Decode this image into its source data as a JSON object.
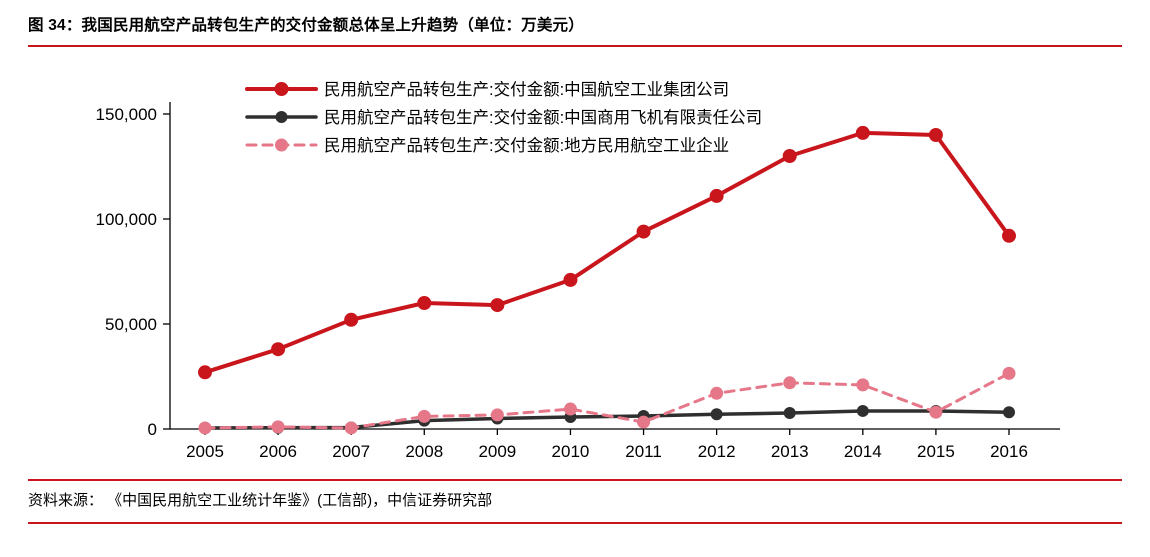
{
  "header": {
    "title": "图 34：我国民用航空产品转包生产的交付金额总体呈上升趋势（单位：万美元）"
  },
  "footer": {
    "source": "资料来源： 《中国民用航空工业统计年鉴》(工信部)，中信证券研究部"
  },
  "colors": {
    "accent_red": "#c9161d",
    "axis": "#000000",
    "series_red": "#c9161d",
    "series_black": "#2f2f2f",
    "series_pink": "#e57789"
  },
  "chart_data": {
    "type": "line",
    "title": "图 34：我国民用航空产品转包生产的交付金额总体呈上升趋势（单位：万美元）",
    "unit": "万美元",
    "xlabel": "",
    "ylabel": "",
    "ylim": [
      0,
      150000
    ],
    "yticks": [
      0,
      50000,
      100000,
      150000
    ],
    "ytick_labels": [
      "0",
      "50,000",
      "100,000",
      "150,000"
    ],
    "grid": false,
    "legend_position": "top-left-inside",
    "categories": [
      "2005",
      "2006",
      "2007",
      "2008",
      "2009",
      "2010",
      "2011",
      "2012",
      "2013",
      "2014",
      "2015",
      "2016"
    ],
    "series": [
      {
        "id": "avic",
        "name": "民用航空产品转包生产:交付金额:中国航空工业集团公司",
        "color": "#c9161d",
        "style": "solid",
        "line_width": 4,
        "marker_radius": 7,
        "values": [
          27000,
          38000,
          52000,
          60000,
          59000,
          71000,
          94000,
          111000,
          130000,
          141000,
          140000,
          92000
        ]
      },
      {
        "id": "comac",
        "name": "民用航空产品转包生产:交付金额:中国商用飞机有限责任公司",
        "color": "#2f2f2f",
        "style": "solid",
        "line_width": 3.5,
        "marker_radius": 6,
        "values": [
          500,
          600,
          700,
          4000,
          5000,
          5700,
          6200,
          7000,
          7600,
          8600,
          8600,
          8000
        ]
      },
      {
        "id": "local",
        "name": "民用航空产品转包生产:交付金额:地方民用航空工业企业",
        "color": "#e57789",
        "style": "dashed",
        "line_width": 3,
        "marker_radius": 6.5,
        "values": [
          500,
          1000,
          500,
          6000,
          6700,
          9500,
          3300,
          17000,
          22000,
          21000,
          8000,
          26500
        ]
      }
    ]
  }
}
